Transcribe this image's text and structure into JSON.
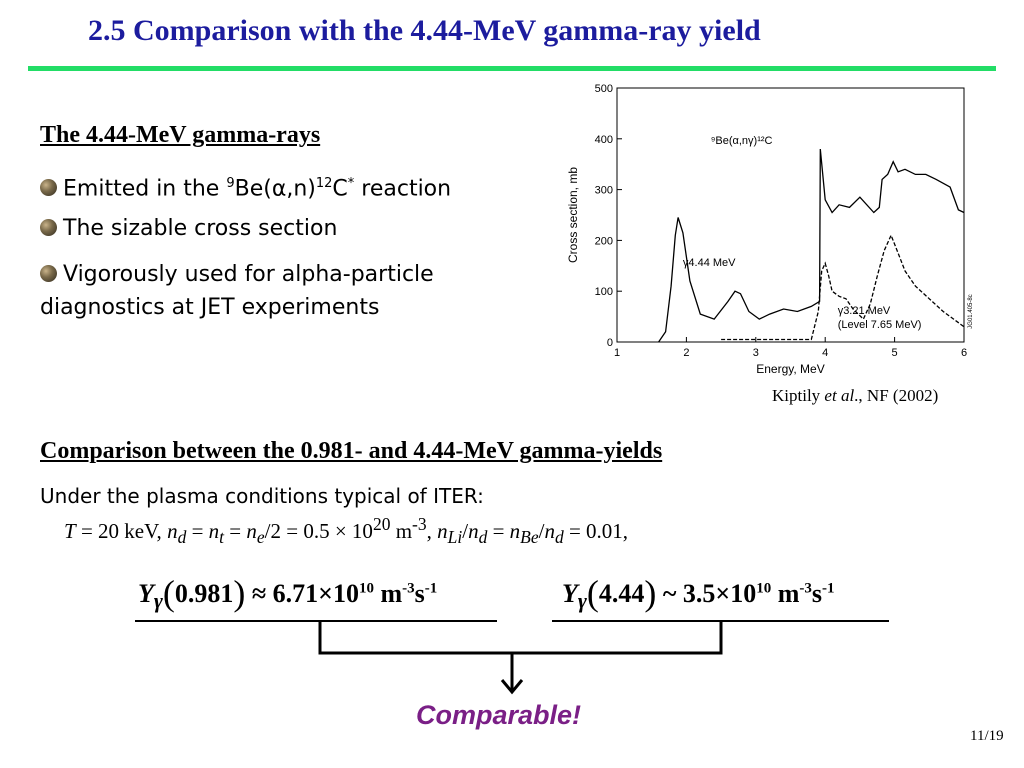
{
  "slide": {
    "title": "2.5 Comparison with the 4.44-MeV gamma-ray yield",
    "page_number": "11/19",
    "title_color": "#1c1c9e",
    "rule_color": "#22dd66",
    "accent_color": "#7a1f86"
  },
  "section1": {
    "heading": "The 4.44-MeV gamma-rays",
    "bullets": {
      "b1": {
        "pre": "Emitted in the ",
        "sup1": "9",
        "mid": "Be(α,n)",
        "sup2": "12",
        "post": "C",
        "star": "*",
        "tail": " reaction"
      },
      "b2": {
        "text": "The sizable cross section"
      },
      "b3": {
        "text": "Vigorously used for alpha-particle diagnostics at JET experiments"
      }
    }
  },
  "figure": {
    "reaction_label": "⁹Be(α,nγ)¹²C",
    "label_444": "γ4.44 MeV",
    "label_321a": "γ3.21 MeV",
    "label_321b": "(Level 7.65 MeV)",
    "side_tag": "JG01.405-8c",
    "citation": {
      "author": "Kiptily ",
      "etal": "et al",
      "rest": "., NF (2002)"
    }
  },
  "chart_data": {
    "type": "line",
    "xlabel": "Energy, MeV",
    "ylabel": "Cross section, mb",
    "xlim": [
      1,
      6
    ],
    "ylim": [
      0,
      500
    ],
    "x_ticks": [
      1,
      2,
      3,
      4,
      5,
      6
    ],
    "y_ticks": [
      0,
      100,
      200,
      300,
      400,
      500
    ],
    "series": [
      {
        "name": "γ4.44 MeV",
        "style": "solid",
        "x": [
          1.6,
          1.7,
          1.78,
          1.84,
          1.88,
          1.95,
          2.05,
          2.2,
          2.4,
          2.6,
          2.7,
          2.78,
          2.9,
          3.05,
          3.2,
          3.4,
          3.6,
          3.8,
          3.92,
          3.93,
          4.0,
          4.1,
          4.2,
          4.35,
          4.5,
          4.7,
          4.78,
          4.82,
          4.9,
          4.98,
          5.05,
          5.15,
          5.3,
          5.45,
          5.6,
          5.8,
          5.92,
          6.0
        ],
        "y": [
          0,
          20,
          110,
          210,
          245,
          215,
          120,
          55,
          45,
          80,
          100,
          95,
          60,
          45,
          55,
          65,
          60,
          70,
          80,
          380,
          280,
          255,
          270,
          265,
          285,
          255,
          265,
          320,
          330,
          355,
          335,
          340,
          330,
          330,
          320,
          305,
          260,
          255
        ]
      },
      {
        "name": "γ3.21 MeV (Level 7.65 MeV)",
        "style": "dashed",
        "x": [
          2.5,
          3.0,
          3.5,
          3.8,
          3.9,
          3.95,
          4.0,
          4.05,
          4.1,
          4.2,
          4.3,
          4.4,
          4.55,
          4.65,
          4.75,
          4.85,
          4.95,
          5.05,
          5.15,
          5.3,
          5.5,
          5.7,
          5.9,
          6.0
        ],
        "y": [
          5,
          5,
          5,
          5,
          60,
          140,
          155,
          130,
          100,
          90,
          85,
          65,
          45,
          75,
          130,
          180,
          210,
          175,
          140,
          110,
          85,
          60,
          40,
          30
        ]
      }
    ]
  },
  "section2": {
    "heading": "Comparison between the 0.981- and 4.44-MeV gamma-yields",
    "condition": "Under the plasma conditions typical of ITER:"
  },
  "params": {
    "T": "T",
    "temp": " = 20 keV, ",
    "n": "n",
    "d": "d",
    "t": "t",
    "e": "e",
    "Li": "Li",
    "Be": "Be",
    "eq": " = ",
    "half": "/2 = 0.5 × 10",
    "exp20": "20",
    "unit": " m",
    "exp_m3": "-3",
    "comma": ", ",
    "slash": "/",
    "ratio": " = 0.01,"
  },
  "eq1": {
    "Y": "Y",
    "gamma": "γ",
    "lp": "(",
    "arg": "0.981",
    "rp": ")",
    "rel": " ≈ 6.71×10",
    "exp": "10",
    "unit": " m",
    "u1": "-3",
    "s": "s",
    "u2": "-1"
  },
  "eq2": {
    "Y": "Y",
    "gamma": "γ",
    "lp": "(",
    "arg": "4.44",
    "rp": ")",
    "rel": " ~ 3.5×10",
    "exp": "10",
    "unit": " m",
    "u1": "-3",
    "s": "s",
    "u2": "-1"
  },
  "conclusion": "Comparable!"
}
